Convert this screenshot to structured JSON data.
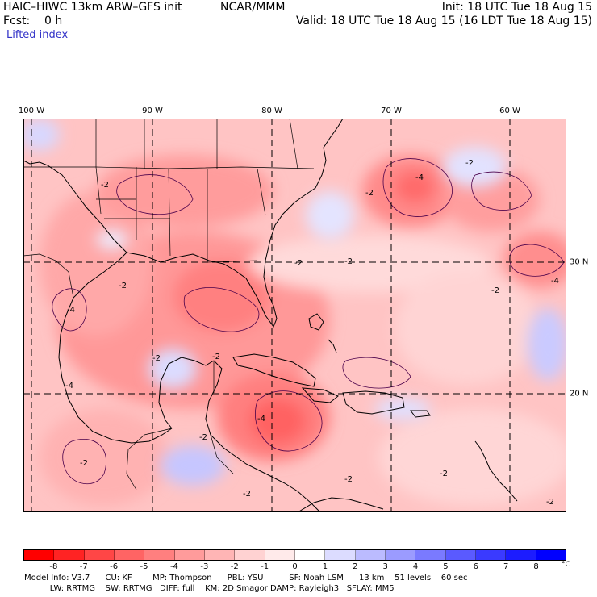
{
  "header": {
    "model_title": "HAIC–HIWC 13km ARW–GFS init",
    "org": "NCAR/MMM",
    "init": "Init: 18 UTC Tue 18 Aug 15",
    "fcst": "Fcst:    0 h",
    "valid": "Valid: 18 UTC Tue 18 Aug 15 (16 LDT Tue 18 Aug 15)",
    "field": "Lifted index"
  },
  "axes": {
    "lon_labels": [
      "100 W",
      "90 W",
      "80 W",
      "70 W",
      "60 W"
    ],
    "lat_labels": [
      "30 N",
      "20 N"
    ]
  },
  "map": {
    "contour_labels": [
      "-2",
      "-4",
      "-2",
      "-2",
      "-4",
      "-2",
      "-4",
      "-2",
      "-2",
      "-2",
      "-2",
      "-4",
      "-2",
      "-2",
      "-2",
      "-2",
      "-2",
      "-2",
      "-4",
      "-2"
    ],
    "colors": {
      "land_outline": "#000000",
      "grid": "#000000"
    }
  },
  "colorbar": {
    "levels": [
      "-8",
      "-7",
      "-6",
      "-5",
      "-4",
      "-3",
      "-2",
      "-1",
      "0",
      "1",
      "2",
      "3",
      "4",
      "5",
      "6",
      "7",
      "8"
    ],
    "unit": "°C",
    "colors": [
      "#ff0000",
      "#ff2323",
      "#ff4646",
      "#ff6464",
      "#ff7f7f",
      "#ff9b9b",
      "#ffb5b5",
      "#ffd2d2",
      "#ffeaea",
      "#ffffff",
      "#dcdcff",
      "#bbbbff",
      "#9b9bff",
      "#7a7aff",
      "#5a5aff",
      "#3a3aff",
      "#1c1cff",
      "#0000ff"
    ]
  },
  "footer": {
    "line1": "Model Info: V3.7      CU: KF        MP: Thompson      PBL: YSU          SF: Noah LSM      13 km    51 levels    60 sec",
    "line2": "          LW: RRTMG    SW: RRTMG   DIFF: full    KM: 2D Smagor DAMP: Rayleigh3   SFLAY: MM5"
  }
}
